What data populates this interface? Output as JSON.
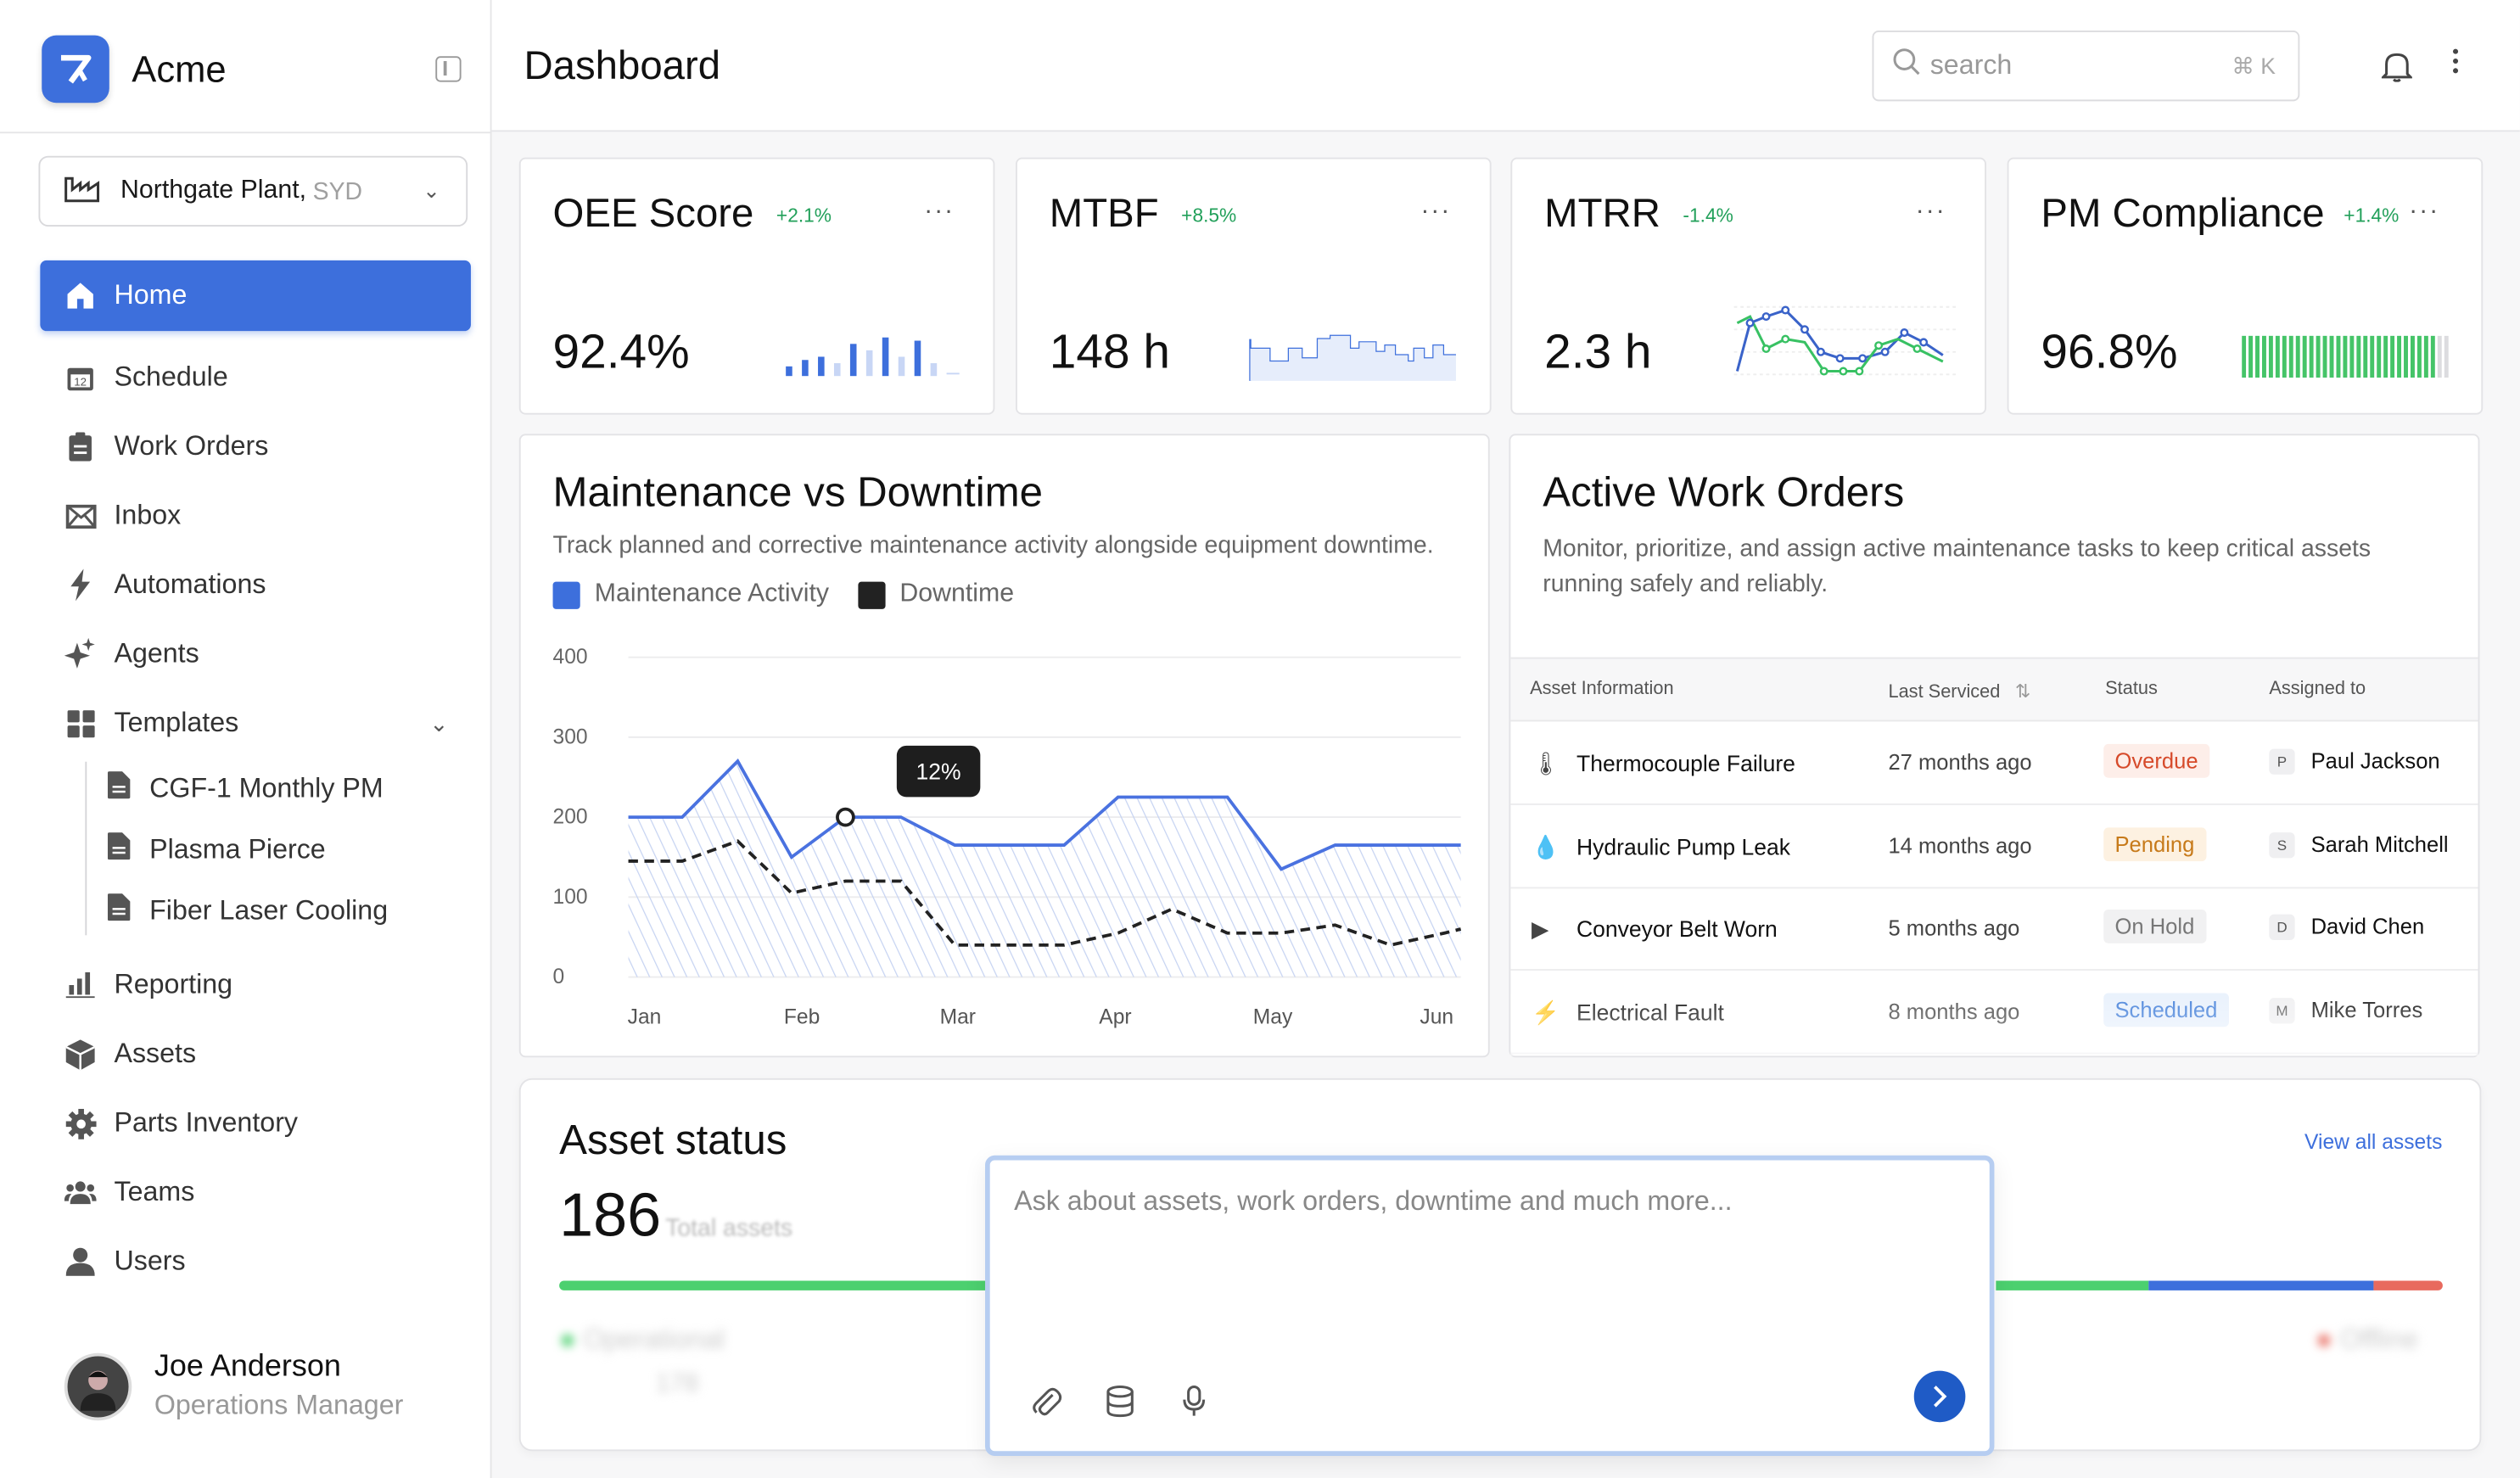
{
  "app": {
    "name": "Acme",
    "page_title": "Dashboard"
  },
  "plant": {
    "name": "Northgate Plant,",
    "region": "SYD"
  },
  "nav": {
    "home": "Home",
    "schedule": "Schedule",
    "work_orders": "Work Orders",
    "inbox": "Inbox",
    "automations": "Automations",
    "agents": "Agents",
    "templates": "Templates",
    "templates_items": [
      "CGF-1 Monthly PM",
      "Plasma Pierce",
      "Fiber Laser Cooling"
    ],
    "reporting": "Reporting",
    "assets": "Assets",
    "parts_inventory": "Parts Inventory",
    "teams": "Teams",
    "users": "Users",
    "schedule_day": "12"
  },
  "user": {
    "name": "Joe Anderson",
    "role": "Operations Manager"
  },
  "search": {
    "placeholder": "search",
    "shortcut": "⌘ K"
  },
  "kpis": [
    {
      "title": "OEE Score",
      "delta": "+2.1%",
      "value": "92.4%",
      "more": "···",
      "delta_color": "#22a05a"
    },
    {
      "title": "MTBF",
      "delta": "+8.5%",
      "value": "148 h",
      "more": "···",
      "delta_color": "#22a05a"
    },
    {
      "title": "MTRR",
      "delta": "-1.4%",
      "value": "2.3 h",
      "more": "···",
      "delta_color": "#22a05a"
    },
    {
      "title": "PM Compliance",
      "delta": "+1.4%",
      "value": "96.8%",
      "more": "···",
      "delta_color": "#22a05a"
    }
  ],
  "maintenance": {
    "title": "Maintenance vs Downtime",
    "description": "Track planned and corrective maintenance activity alongside equipment downtime.",
    "legend_activity": "Maintenance Activity",
    "legend_downtime": "Downtime",
    "tooltip": "12%"
  },
  "chart_data": {
    "type": "line",
    "title": "Maintenance vs Downtime",
    "x": [
      0,
      0.33,
      0.67,
      1,
      1.33,
      1.67,
      2,
      2.33,
      2.67,
      3,
      3.33,
      3.67,
      4,
      4.33,
      4.67,
      5,
      5.1
    ],
    "tick_labels": [
      "Jan",
      "Feb",
      "Mar",
      "Apr",
      "May",
      "Jun"
    ],
    "ylim": [
      0,
      400
    ],
    "yticks": [
      0,
      100,
      200,
      300,
      400
    ],
    "series": [
      {
        "name": "Maintenance Activity",
        "color": "#4a72e0",
        "values": [
          200,
          200,
          270,
          150,
          200,
          200,
          165,
          165,
          165,
          225,
          225,
          225,
          135,
          165,
          165,
          165,
          165
        ]
      },
      {
        "name": "Downtime",
        "color": "#222222",
        "values": [
          145,
          145,
          170,
          105,
          120,
          120,
          40,
          40,
          40,
          55,
          85,
          55,
          55,
          65,
          40,
          55,
          60
        ]
      }
    ],
    "grid": true,
    "legend": "top-left"
  },
  "work_orders": {
    "title": "Active Work Orders",
    "description": "Monitor, prioritize, and assign active maintenance tasks to keep critical assets running safely and reliably.",
    "columns": [
      "Asset Information",
      "Last Serviced",
      "Status",
      "Assigned to"
    ],
    "sort_icon": "⇅",
    "rows": [
      {
        "asset": "Thermocouple Failure",
        "icon": "🌡",
        "serviced": "27 months ago",
        "status": "Overdue",
        "status_color": "#d64a2a",
        "status_bg": "#fdeee9",
        "initial": "P",
        "assignee": "Paul Jackson"
      },
      {
        "asset": "Hydraulic Pump Leak",
        "icon": "💧",
        "serviced": "14 months ago",
        "status": "Pending",
        "status_color": "#c77a1a",
        "status_bg": "#fdf1e1",
        "initial": "S",
        "assignee": "Sarah Mitchell"
      },
      {
        "asset": "Conveyor Belt Worn",
        "icon": "▶",
        "serviced": "5 months ago",
        "status": "On Hold",
        "status_color": "#777777",
        "status_bg": "#f1f1f2",
        "initial": "D",
        "assignee": "David Chen"
      },
      {
        "asset": "Electrical Fault",
        "icon": "⚡",
        "serviced": "8 months ago",
        "status": "Scheduled",
        "status_color": "#3d7bd8",
        "status_bg": "#e7f0fc",
        "initial": "M",
        "assignee": "Mike Torres"
      }
    ]
  },
  "asset_status": {
    "title": "Asset status",
    "total": "186",
    "total_label": "Total assets",
    "view_all": "View all assets",
    "legend_left": "Operational",
    "legend_left_count": "178",
    "legend_right": "Offline"
  },
  "ai": {
    "placeholder": "Ask about assets, work orders, downtime and much more..."
  }
}
